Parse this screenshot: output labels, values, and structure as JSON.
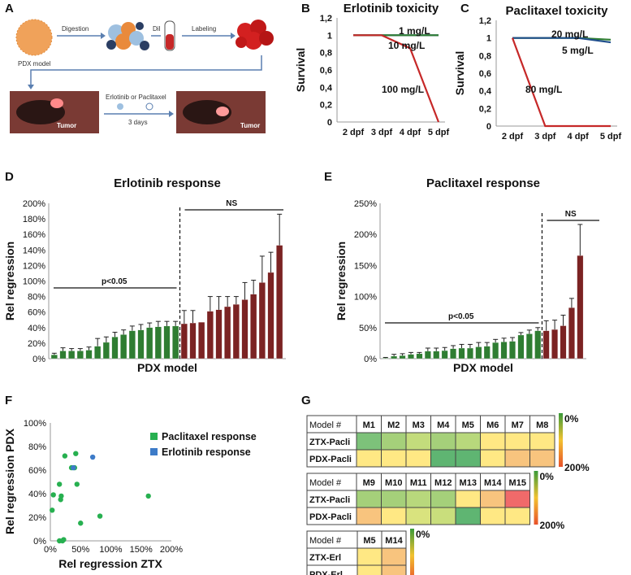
{
  "panel_labels": {
    "A": "A",
    "B": "B",
    "C": "C",
    "D": "D",
    "E": "E",
    "F": "F",
    "G": "G"
  },
  "schematic": {
    "pdx_label": "PDX model",
    "step1": "Digestion",
    "dye": "DiI",
    "step2": "Labeling",
    "treatment": "Erlotinib or Paclitaxel",
    "duration": "3 days",
    "tumor_label_left": "Tumor",
    "tumor_label_right": "Tumor"
  },
  "chart_data": [
    {
      "id": "B",
      "type": "line",
      "title": "Erlotinib toxicity",
      "ylabel": "Survival",
      "xlabel": "",
      "x": [
        "2 dpf",
        "3 dpf",
        "4 dpf",
        "5 dpf"
      ],
      "yticks": [
        "0",
        "0,2",
        "0,4",
        "0,6",
        "0,8",
        "1",
        "1,2"
      ],
      "ylim": [
        0,
        1.2
      ],
      "series": [
        {
          "name": "1 mg/L",
          "color": "#1f4e8c",
          "values": [
            1,
            1,
            1,
            1
          ]
        },
        {
          "name": "10 mg/L",
          "color": "#2e7d32",
          "values": [
            1,
            1,
            1,
            1
          ]
        },
        {
          "name": "100 mg/L",
          "color": "#c62828",
          "values": [
            1,
            1,
            0.85,
            0
          ]
        }
      ],
      "labels": [
        "1 mg/L",
        "10 mg/L",
        "100 mg/L"
      ]
    },
    {
      "id": "C",
      "type": "line",
      "title": "Paclitaxel toxicity",
      "ylabel": "Survival",
      "xlabel": "",
      "x": [
        "2 dpf",
        "3 dpf",
        "4 dpf",
        "5 dpf"
      ],
      "yticks": [
        "0",
        "0,2",
        "0,4",
        "0,6",
        "0,8",
        "1",
        "1,2"
      ],
      "ylim": [
        0,
        1.2
      ],
      "series": [
        {
          "name": "20 mg/L",
          "color": "#2e7d32",
          "values": [
            1,
            1,
            1,
            0.98
          ]
        },
        {
          "name": "5 mg/L",
          "color": "#1f4e8c",
          "values": [
            1,
            1,
            1,
            0.95
          ]
        },
        {
          "name": "80 mg/L",
          "color": "#c62828",
          "values": [
            1,
            0,
            0,
            0
          ]
        }
      ],
      "labels": [
        "20 mg/L",
        "5 mg/L",
        "80 mg/L"
      ]
    },
    {
      "id": "D",
      "type": "bar",
      "title": "Erlotinib response",
      "ylabel": "Rel regression",
      "xlabel": "PDX model",
      "yticks": [
        "0%",
        "20%",
        "40%",
        "60%",
        "80%",
        "100%",
        "120%",
        "140%",
        "160%",
        "180%",
        "200%"
      ],
      "ylim": [
        0,
        200
      ],
      "green_values": [
        5,
        10,
        10,
        10,
        11,
        16,
        21,
        28,
        31,
        36,
        37,
        40,
        41,
        42,
        42
      ],
      "green_errors": [
        2,
        4,
        3,
        3,
        4,
        10,
        7,
        6,
        6,
        6,
        7,
        6,
        7,
        6,
        6
      ],
      "red_values": [
        45,
        46,
        47,
        61,
        63,
        67,
        70,
        76,
        83,
        98,
        111,
        146
      ],
      "red_errors": [
        17,
        16,
        0,
        19,
        17,
        13,
        10,
        22,
        18,
        34,
        26,
        40
      ],
      "colors": {
        "green": "#2f7d32",
        "red": "#7b2323"
      },
      "annotations": [
        "p<0.05",
        "NS"
      ]
    },
    {
      "id": "E",
      "type": "bar",
      "title": "Paclitaxel response",
      "ylabel": "Rel regression",
      "xlabel": "PDX model",
      "yticks": [
        "0%",
        "50%",
        "100%",
        "150%",
        "200%",
        "250%"
      ],
      "ylim": [
        0,
        250
      ],
      "green_values": [
        1,
        4,
        5,
        7,
        8,
        12,
        12,
        13,
        16,
        17,
        17,
        19,
        20,
        26,
        27,
        28,
        38,
        40,
        45
      ],
      "green_errors": [
        1,
        3,
        3,
        3,
        2,
        5,
        5,
        5,
        5,
        6,
        6,
        7,
        6,
        5,
        6,
        6,
        4,
        6,
        5
      ],
      "red_values": [
        45,
        47,
        53,
        82,
        166
      ],
      "red_errors": [
        16,
        15,
        17,
        15,
        50
      ],
      "colors": {
        "green": "#2f7d32",
        "red": "#7b2323"
      },
      "annotations": [
        "p<0.05",
        "NS"
      ]
    },
    {
      "id": "F",
      "type": "scatter",
      "title": "",
      "xlabel": "Rel regression ZTX",
      "ylabel": "Rel regression PDX",
      "xticks": [
        "0%",
        "50%",
        "100%",
        "150%",
        "200%"
      ],
      "yticks": [
        "0%",
        "20%",
        "40%",
        "60%",
        "80%",
        "100%"
      ],
      "xlim": [
        0,
        200
      ],
      "ylim": [
        0,
        100
      ],
      "series": [
        {
          "name": "Paclitaxel response",
          "color": "#27b050",
          "points": [
            [
              3,
              26
            ],
            [
              5,
              39
            ],
            [
              15,
              48
            ],
            [
              18,
              38
            ],
            [
              17,
              35
            ],
            [
              15,
              0
            ],
            [
              20,
              0
            ],
            [
              22,
              1
            ],
            [
              24,
              72
            ],
            [
              35,
              62
            ],
            [
              40,
              62
            ],
            [
              42,
              74
            ],
            [
              44,
              48
            ],
            [
              50,
              15
            ],
            [
              82,
              21
            ],
            [
              162,
              38
            ]
          ]
        },
        {
          "name": "Erlotinib response",
          "color": "#3d7bc8",
          "points": [
            [
              38,
              62
            ],
            [
              70,
              71
            ]
          ]
        }
      ]
    },
    {
      "id": "G",
      "type": "heatmap",
      "title": "",
      "legend_min": "0%",
      "legend_max": "200%",
      "tables": [
        {
          "header": "Model #",
          "cols": [
            "M1",
            "M2",
            "M3",
            "M4",
            "M5",
            "M6",
            "M7",
            "M8"
          ],
          "rows": [
            {
              "name": "ZTX-Pacli",
              "colors": [
                "#7dc27a",
                "#a5d07a",
                "#c3dc7c",
                "#a5d07a",
                "#b8d87c",
                "#ffe884",
                "#ffe884",
                "#ffe884"
              ]
            },
            {
              "name": "PDX-Pacli",
              "colors": [
                "#ffe884",
                "#ffe884",
                "#ffe884",
                "#5fb572",
                "#5fb572",
                "#ffe884",
                "#f8c47e",
                "#f8c47e"
              ]
            }
          ]
        },
        {
          "header": "Model #",
          "cols": [
            "M9",
            "M10",
            "M11",
            "M12",
            "M13",
            "M14",
            "M15"
          ],
          "rows": [
            {
              "name": "ZTX-Pacli",
              "colors": [
                "#a5d07a",
                "#a5d07a",
                "#b8d87c",
                "#a5d07a",
                "#ffe884",
                "#f8c47e",
                "#f06a6a"
              ]
            },
            {
              "name": "PDX-Pacli",
              "colors": [
                "#f8c47e",
                "#ffe884",
                "#d9e37e",
                "#c9de7c",
                "#5fb572",
                "#ffe884",
                "#ffe884"
              ]
            }
          ]
        },
        {
          "header": "Model #",
          "cols": [
            "M5",
            "M14"
          ],
          "rows": [
            {
              "name": "ZTX-Erl",
              "colors": [
                "#ffe884",
                "#f8c47e"
              ]
            },
            {
              "name": "PDX-Erl",
              "colors": [
                "#ffe884",
                "#f8c47e"
              ]
            }
          ]
        }
      ]
    }
  ]
}
